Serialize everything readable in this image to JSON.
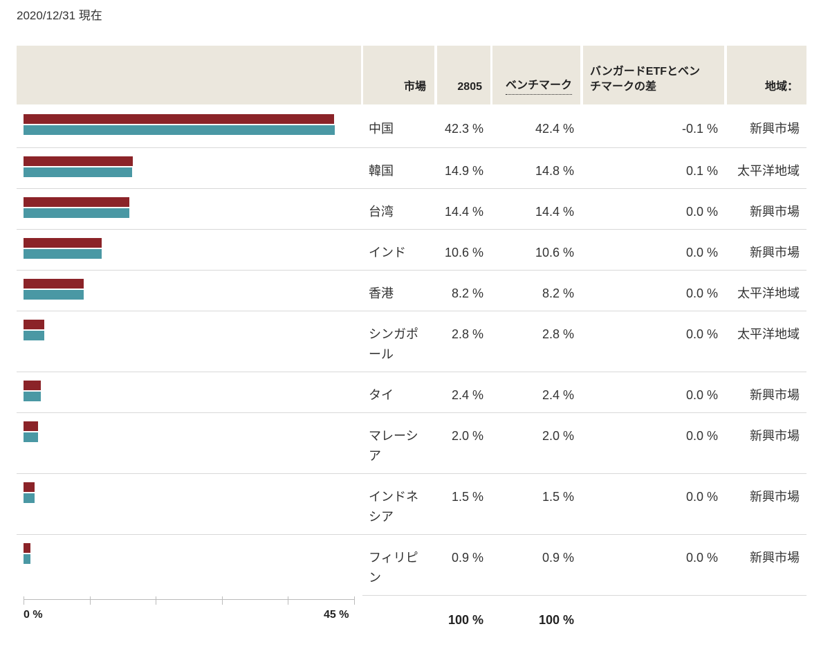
{
  "as_of": "2020/12/31 現在",
  "headers": {
    "market": "市場",
    "fund": "2805",
    "benchmark": "ベンチマーク",
    "difference_line1": "バンガードETFとベン",
    "difference_line2": "チマークの差",
    "region": "地域："
  },
  "colors": {
    "fund": "#8b2328",
    "benchmark": "#4a98a4",
    "header_bg": "#ebe7dd"
  },
  "chart_data": {
    "type": "bar",
    "orientation": "horizontal",
    "xlim": [
      0,
      45
    ],
    "axis_labels": {
      "min": "0 %",
      "max": "45 %"
    },
    "categories": [
      "中国",
      "韓国",
      "台湾",
      "インド",
      "香港",
      "シンガポール",
      "タイ",
      "マレーシア",
      "インドネシア",
      "フィリピン"
    ],
    "category_lines": [
      [
        "中国"
      ],
      [
        "韓国"
      ],
      [
        "台湾"
      ],
      [
        "インド"
      ],
      [
        "香港"
      ],
      [
        "シンガポ",
        "ール"
      ],
      [
        "タイ"
      ],
      [
        "マレーシ",
        "ア"
      ],
      [
        "インドネ",
        "シア"
      ],
      [
        "フィリピ",
        "ン"
      ]
    ],
    "series": [
      {
        "name": "2805",
        "values": [
          42.3,
          14.9,
          14.4,
          10.6,
          8.2,
          2.8,
          2.4,
          2.0,
          1.5,
          0.9
        ]
      },
      {
        "name": "ベンチマーク",
        "values": [
          42.4,
          14.8,
          14.4,
          10.6,
          8.2,
          2.8,
          2.4,
          2.0,
          1.5,
          0.9
        ]
      }
    ]
  },
  "rows": [
    {
      "market": "中国",
      "fund": "42.3 %",
      "benchmark": "42.4 %",
      "difference": "-0.1 %",
      "region": "新興市場"
    },
    {
      "market": "韓国",
      "fund": "14.9 %",
      "benchmark": "14.8 %",
      "difference": "0.1 %",
      "region": "太平洋地域"
    },
    {
      "market": "台湾",
      "fund": "14.4 %",
      "benchmark": "14.4 %",
      "difference": "0.0 %",
      "region": "新興市場"
    },
    {
      "market": "インド",
      "fund": "10.6 %",
      "benchmark": "10.6 %",
      "difference": "0.0 %",
      "region": "新興市場"
    },
    {
      "market": "香港",
      "fund": "8.2 %",
      "benchmark": "8.2 %",
      "difference": "0.0 %",
      "region": "太平洋地域"
    },
    {
      "market": "シンガポール",
      "fund": "2.8 %",
      "benchmark": "2.8 %",
      "difference": "0.0 %",
      "region": "太平洋地域"
    },
    {
      "market": "タイ",
      "fund": "2.4 %",
      "benchmark": "2.4 %",
      "difference": "0.0 %",
      "region": "新興市場"
    },
    {
      "market": "マレーシア",
      "fund": "2.0 %",
      "benchmark": "2.0 %",
      "difference": "0.0 %",
      "region": "新興市場"
    },
    {
      "market": "インドネシア",
      "fund": "1.5 %",
      "benchmark": "1.5 %",
      "difference": "0.0 %",
      "region": "新興市場"
    },
    {
      "market": "フィリピン",
      "fund": "0.9 %",
      "benchmark": "0.9 %",
      "difference": "0.0 %",
      "region": "新興市場"
    }
  ],
  "totals": {
    "fund": "100 %",
    "benchmark": "100 %"
  }
}
